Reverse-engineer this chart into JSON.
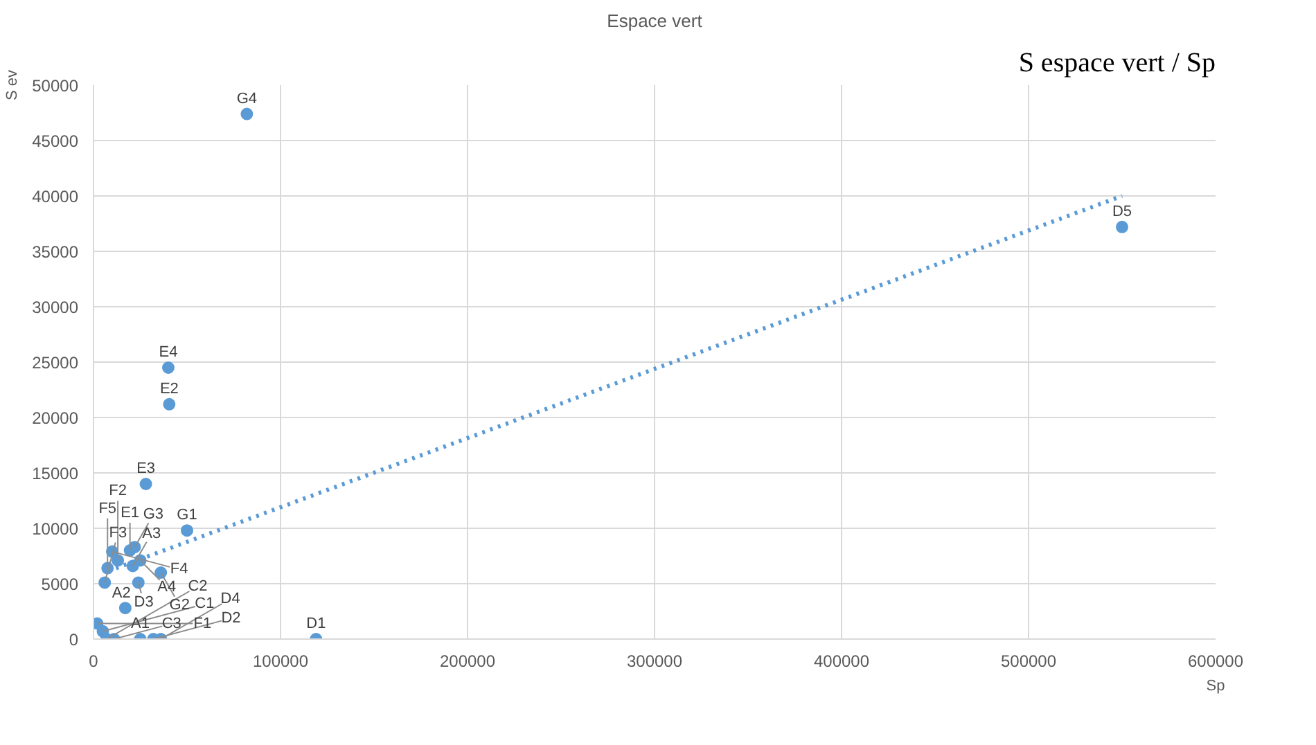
{
  "chart_data": {
    "type": "scatter",
    "title": "Espace vert",
    "xlabel": "Sp",
    "ylabel": "S ev",
    "xlim": [
      0,
      600000
    ],
    "xticks": [
      0,
      100000,
      200000,
      300000,
      400000,
      500000,
      600000
    ],
    "ylim": [
      0,
      50000
    ],
    "yticks": [
      0,
      5000,
      10000,
      15000,
      20000,
      25000,
      30000,
      35000,
      40000,
      45000,
      50000
    ],
    "grid": true,
    "series": [
      {
        "color": "#5b9bd5",
        "marker": "circle",
        "x": [
          25000,
          17000,
          21000,
          25000,
          5000,
          7000,
          11000,
          119000,
          32000,
          24000,
          36000,
          550000,
          19500,
          40500,
          28000,
          40000,
          2000,
          13000,
          6000,
          10000,
          7500,
          50000,
          36000,
          22000,
          82000
        ],
        "values": [
          0,
          2800,
          6600,
          7100,
          700,
          0,
          0,
          0,
          0,
          5100,
          0,
          37200,
          8000,
          21200,
          14000,
          24500,
          1400,
          7100,
          5100,
          7900,
          6400,
          9800,
          6000,
          8300,
          47400
        ]
      },
      {
        "type": "line",
        "line_style": "dotted",
        "color": "#5b9bd5",
        "x": [
          12000,
          550000
        ],
        "values": [
          6400,
          40000
        ]
      }
    ],
    "annotations": [
      {
        "text": "A1",
        "x": 25000,
        "y": 0
      },
      {
        "text": "A2",
        "x": 17000,
        "y": 2800
      },
      {
        "text": "A3",
        "x": 21000,
        "y": 6600
      },
      {
        "text": "A4",
        "x": 25000,
        "y": 7100
      },
      {
        "text": "C1",
        "x": 5000,
        "y": 700
      },
      {
        "text": "C2",
        "x": 7000,
        "y": 0
      },
      {
        "text": "C3",
        "x": 11000,
        "y": 0
      },
      {
        "text": "D1",
        "x": 119000,
        "y": 0
      },
      {
        "text": "D2",
        "x": 32000,
        "y": 0
      },
      {
        "text": "D3",
        "x": 24000,
        "y": 5100
      },
      {
        "text": "D4",
        "x": 36000,
        "y": 0
      },
      {
        "text": "D5",
        "x": 550000,
        "y": 37200
      },
      {
        "text": "E1",
        "x": 19500,
        "y": 8000
      },
      {
        "text": "E2",
        "x": 40500,
        "y": 21200
      },
      {
        "text": "E3",
        "x": 28000,
        "y": 14000
      },
      {
        "text": "E4",
        "x": 40000,
        "y": 24500
      },
      {
        "text": "F1",
        "x": 2000,
        "y": 1400
      },
      {
        "text": "F2",
        "x": 13000,
        "y": 7100
      },
      {
        "text": "F3",
        "x": 6000,
        "y": 5100
      },
      {
        "text": "F4",
        "x": 10000,
        "y": 7900
      },
      {
        "text": "F5",
        "x": 7500,
        "y": 6400
      },
      {
        "text": "G1",
        "x": 50000,
        "y": 9800
      },
      {
        "text": "G2",
        "x": 36000,
        "y": 6000
      },
      {
        "text": "G3",
        "x": 22000,
        "y": 8300
      },
      {
        "text": "G4",
        "x": 82000,
        "y": 47400
      },
      "S espace vert / Sp"
    ]
  }
}
